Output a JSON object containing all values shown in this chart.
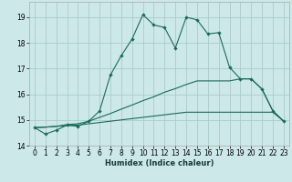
{
  "xlabel": "Humidex (Indice chaleur)",
  "xlim": [
    -0.5,
    23.5
  ],
  "ylim": [
    14.0,
    19.6
  ],
  "yticks": [
    14,
    15,
    16,
    17,
    18,
    19
  ],
  "xticks": [
    0,
    1,
    2,
    3,
    4,
    5,
    6,
    7,
    8,
    9,
    10,
    11,
    12,
    13,
    14,
    15,
    16,
    17,
    18,
    19,
    20,
    21,
    22,
    23
  ],
  "bg_color": "#cce8e8",
  "grid_color": "#aacccc",
  "line_color": "#1a6b5a",
  "series1_x": [
    0,
    1,
    2,
    3,
    4,
    5,
    6,
    7,
    8,
    9,
    10,
    11,
    12,
    13,
    14,
    15,
    16,
    17,
    18,
    19,
    20,
    21,
    22,
    23
  ],
  "series1_y": [
    14.7,
    14.45,
    14.6,
    14.8,
    14.75,
    14.95,
    15.35,
    16.75,
    17.5,
    18.15,
    19.1,
    18.7,
    18.6,
    17.8,
    19.0,
    18.9,
    18.35,
    18.4,
    17.05,
    16.6,
    16.6,
    16.2,
    15.35,
    14.95
  ],
  "series2_x": [
    0,
    1,
    2,
    3,
    4,
    5,
    6,
    7,
    8,
    9,
    10,
    11,
    12,
    13,
    14,
    15,
    16,
    17,
    18,
    19,
    20,
    21,
    22,
    23
  ],
  "series2_y": [
    14.7,
    14.72,
    14.75,
    14.82,
    14.85,
    14.95,
    15.1,
    15.25,
    15.42,
    15.58,
    15.75,
    15.9,
    16.08,
    16.22,
    16.38,
    16.52,
    16.52,
    16.52,
    16.52,
    16.6,
    16.6,
    16.2,
    15.35,
    14.95
  ],
  "series3_x": [
    0,
    1,
    2,
    3,
    4,
    5,
    6,
    7,
    8,
    9,
    10,
    11,
    12,
    13,
    14,
    15,
    16,
    17,
    18,
    19,
    20,
    21,
    22,
    23
  ],
  "series3_y": [
    14.7,
    14.72,
    14.75,
    14.78,
    14.8,
    14.85,
    14.9,
    14.95,
    15.0,
    15.05,
    15.1,
    15.15,
    15.2,
    15.25,
    15.3,
    15.3,
    15.3,
    15.3,
    15.3,
    15.3,
    15.3,
    15.3,
    15.3,
    14.95
  ]
}
